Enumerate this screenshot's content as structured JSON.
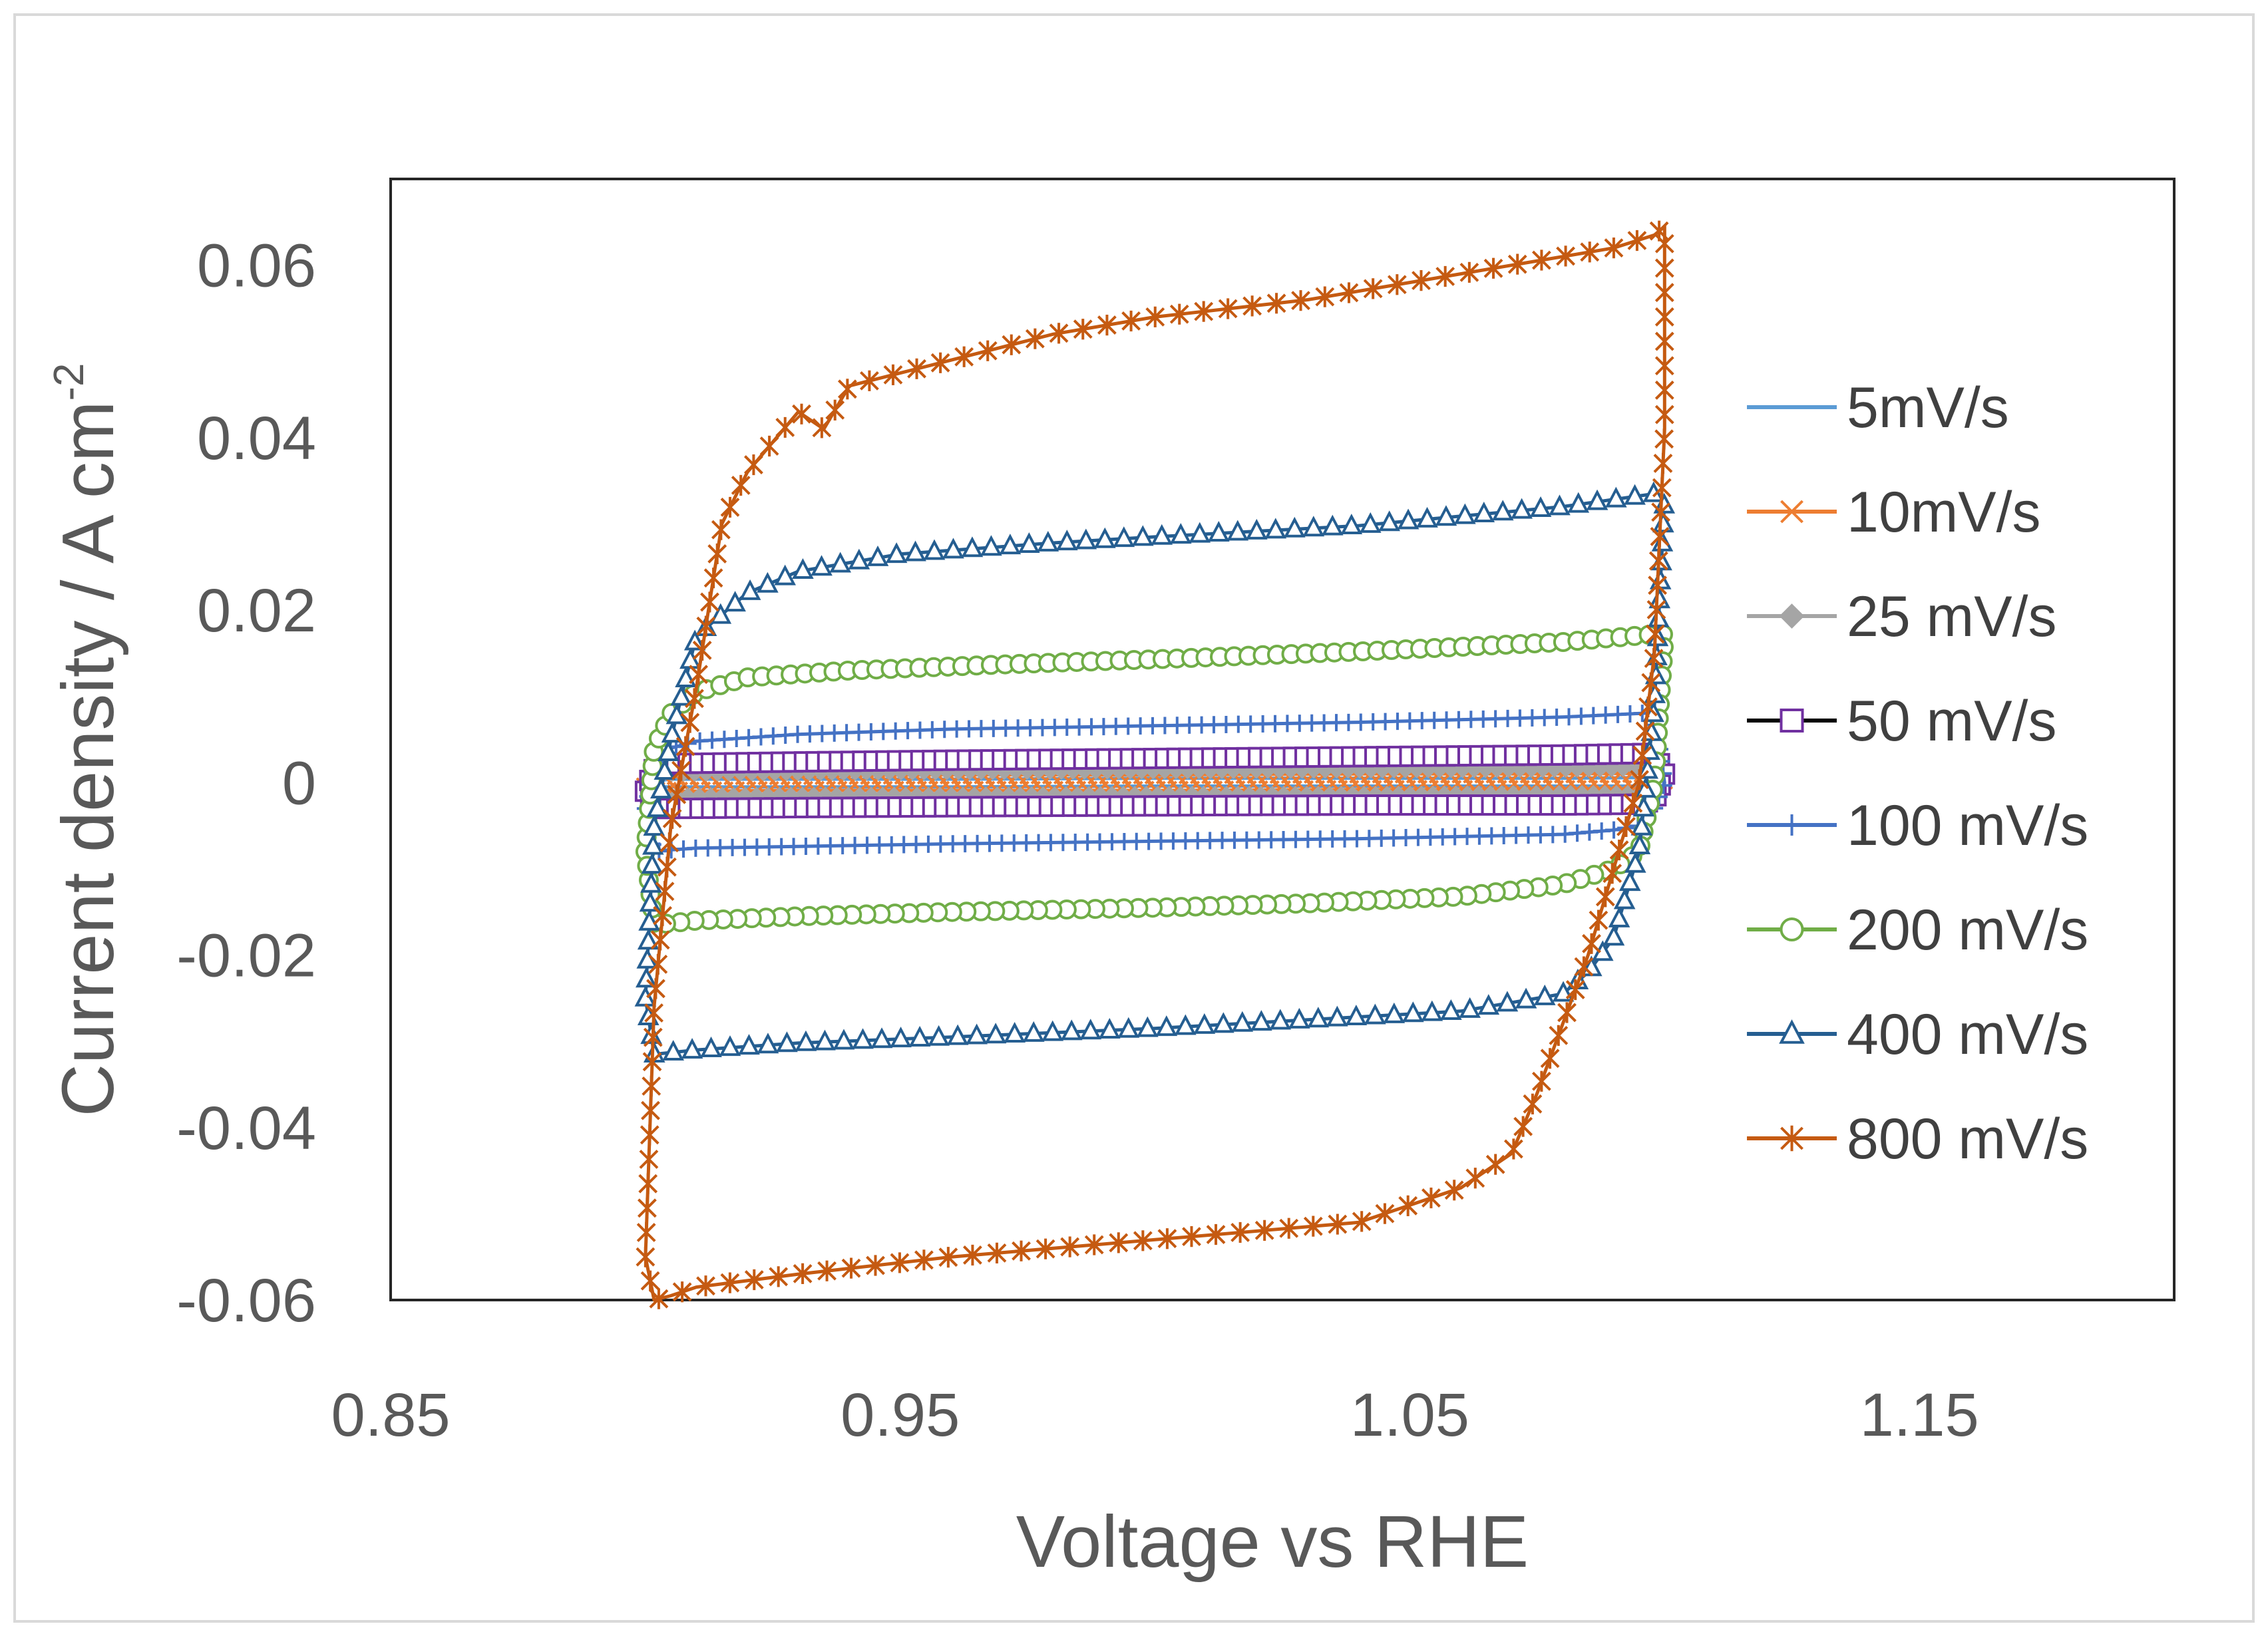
{
  "chart_data": {
    "type": "line",
    "title": "",
    "xlabel": "Voltage vs RHE",
    "ylabel": "Current density  / A cm",
    "ylabel_superscript": "-2",
    "xlim": [
      0.85,
      1.2
    ],
    "ylim": [
      -0.06,
      0.07
    ],
    "xticks": [
      0.85,
      0.95,
      1.05,
      1.15
    ],
    "xtick_labels": [
      "0.85",
      "0.95",
      "1.05",
      "1.15"
    ],
    "yticks": [
      -0.06,
      -0.04,
      -0.02,
      0,
      0.02,
      0.04,
      0.06
    ],
    "ytick_labels": [
      "-0.06",
      "-0.04",
      "-0.02",
      "0",
      "0.02",
      "0.04",
      "0.06"
    ],
    "grid": false,
    "legend_position": "right",
    "series": [
      {
        "name": "5mV/s",
        "color": "#5B9BD5",
        "marker": "none",
        "x": [
          0.9,
          0.9017,
          0.905,
          0.93,
          0.96,
          1.0,
          1.04,
          1.08,
          1.098,
          1.1,
          1.098,
          1.095,
          1.08,
          1.04,
          1.0,
          0.96,
          0.93,
          0.905,
          0.9017,
          0.9
        ],
        "y": [
          -0.0003,
          0.0002,
          0.0004,
          0.0004,
          0.0004,
          0.0005,
          0.0005,
          0.0005,
          0.0006,
          0.0002,
          -0.0003,
          -0.0004,
          -0.0004,
          -0.0004,
          -0.0004,
          -0.0005,
          -0.0005,
          -0.0005,
          -0.0005,
          -0.0003
        ]
      },
      {
        "name": "10mV/s",
        "color": "#ED7D31",
        "marker": "x",
        "x": [
          0.9,
          0.9017,
          0.905,
          0.93,
          0.96,
          1.0,
          1.04,
          1.08,
          1.098,
          1.1,
          1.098,
          1.095,
          1.08,
          1.04,
          1.0,
          0.96,
          0.93,
          0.905,
          0.9017,
          0.9
        ],
        "y": [
          -0.0005,
          0.0004,
          0.0008,
          0.0008,
          0.0009,
          0.0009,
          0.001,
          0.001,
          0.0011,
          0.0002,
          -0.0006,
          -0.0008,
          -0.0008,
          -0.0008,
          -0.0009,
          -0.0009,
          -0.0009,
          -0.001,
          -0.001,
          -0.0005
        ]
      },
      {
        "name": "25 mV/s",
        "color": "#A5A5A5",
        "marker": "diamond",
        "x": [
          0.9,
          0.9017,
          0.905,
          0.93,
          0.96,
          1.0,
          1.04,
          1.08,
          1.098,
          1.1,
          1.098,
          1.095,
          1.08,
          1.04,
          1.0,
          0.96,
          0.93,
          0.905,
          0.9017,
          0.9
        ],
        "y": [
          -0.0008,
          0.0008,
          0.0013,
          0.0014,
          0.0015,
          0.0016,
          0.0017,
          0.0018,
          0.0019,
          0.0005,
          -0.0012,
          -0.0015,
          -0.0015,
          -0.0016,
          -0.0016,
          -0.0017,
          -0.0017,
          -0.0018,
          -0.0018,
          -0.0008
        ]
      },
      {
        "name": "50 mV/s",
        "color": "#000000",
        "marker": "square",
        "marker_color": "#7030A0",
        "x": [
          0.9,
          0.9017,
          0.905,
          0.93,
          0.96,
          1.0,
          1.04,
          1.08,
          1.098,
          1.1,
          1.098,
          1.095,
          1.08,
          1.04,
          1.0,
          0.96,
          0.93,
          0.905,
          0.9017,
          0.9
        ],
        "y": [
          -0.001,
          0.0015,
          0.0022,
          0.0024,
          0.0026,
          0.0028,
          0.003,
          0.0032,
          0.0034,
          0.001,
          -0.002,
          -0.0025,
          -0.0026,
          -0.0026,
          -0.0027,
          -0.0028,
          -0.0029,
          -0.003,
          -0.003,
          -0.001
        ]
      },
      {
        "name": "100 mV/s",
        "color": "#4472C4",
        "marker": "plus",
        "x": [
          0.9,
          0.9017,
          0.905,
          0.91,
          0.93,
          0.96,
          1.0,
          1.04,
          1.08,
          1.098,
          1.1,
          1.098,
          1.095,
          1.09,
          1.08,
          1.04,
          1.0,
          0.96,
          0.93,
          0.91,
          0.905,
          0.9017,
          0.9
        ],
        "y": [
          -0.003,
          0.002,
          0.004,
          0.0048,
          0.0056,
          0.0062,
          0.0066,
          0.007,
          0.0076,
          0.0081,
          0.0,
          -0.003,
          -0.005,
          -0.0055,
          -0.006,
          -0.0065,
          -0.0068,
          -0.0071,
          -0.0074,
          -0.0076,
          -0.0078,
          -0.008,
          -0.003
        ]
      },
      {
        "name": "200 mV/s",
        "color": "#70AD47",
        "marker": "circle",
        "x": [
          0.9,
          0.9017,
          0.905,
          0.91,
          0.92,
          0.94,
          0.97,
          1.0,
          1.04,
          1.08,
          1.098,
          1.1,
          1.098,
          1.095,
          1.09,
          1.08,
          1.06,
          1.03,
          1.0,
          0.96,
          0.93,
          0.91,
          0.9017,
          0.9
        ],
        "y": [
          -0.008,
          0.004,
          0.008,
          0.0105,
          0.0122,
          0.013,
          0.0137,
          0.0143,
          0.0152,
          0.0163,
          0.0172,
          0.0172,
          0.0,
          -0.008,
          -0.01,
          -0.0118,
          -0.0132,
          -0.014,
          -0.0145,
          -0.015,
          -0.0155,
          -0.016,
          -0.0165,
          -0.008
        ]
      },
      {
        "name": "400 mV/s",
        "color": "#255E91",
        "marker": "triangle",
        "x": [
          0.9,
          0.9017,
          0.905,
          0.91,
          0.92,
          0.93,
          0.95,
          0.98,
          1.0,
          1.04,
          1.08,
          1.098,
          1.1,
          1.098,
          1.095,
          1.09,
          1.085,
          1.08,
          1.06,
          1.03,
          1.0,
          0.96,
          0.93,
          0.91,
          0.9017,
          0.9
        ],
        "y": [
          -0.025,
          -0.005,
          0.005,
          0.017,
          0.022,
          0.0245,
          0.0265,
          0.0278,
          0.0285,
          0.0298,
          0.032,
          0.0335,
          0.033,
          0.009,
          -0.008,
          -0.018,
          -0.022,
          -0.0245,
          -0.0265,
          -0.0275,
          -0.0285,
          -0.0295,
          -0.0302,
          -0.031,
          -0.0315,
          -0.025
        ]
      },
      {
        "name": "800 mV/s",
        "color": "#C55A11",
        "marker": "star",
        "x": [
          0.9,
          0.9017,
          0.905,
          0.91,
          0.915,
          0.92,
          0.93,
          0.935,
          0.94,
          0.96,
          0.98,
          1.0,
          1.03,
          1.06,
          1.09,
          1.098,
          1.1,
          1.1,
          1.098,
          1.095,
          1.09,
          1.085,
          1.08,
          1.075,
          1.07,
          1.06,
          1.04,
          1.0,
          0.96,
          0.93,
          0.91,
          0.905,
          0.9017,
          0.9
        ],
        "y": [
          -0.055,
          -0.026,
          -0.005,
          0.011,
          0.03,
          0.036,
          0.043,
          0.041,
          0.046,
          0.049,
          0.052,
          0.054,
          0.056,
          0.059,
          0.062,
          0.0635,
          0.0645,
          0.041,
          0.015,
          0.0,
          -0.01,
          -0.02,
          -0.028,
          -0.036,
          -0.043,
          -0.047,
          -0.051,
          -0.053,
          -0.055,
          -0.057,
          -0.0585,
          -0.0595,
          -0.06,
          -0.055
        ]
      }
    ]
  }
}
